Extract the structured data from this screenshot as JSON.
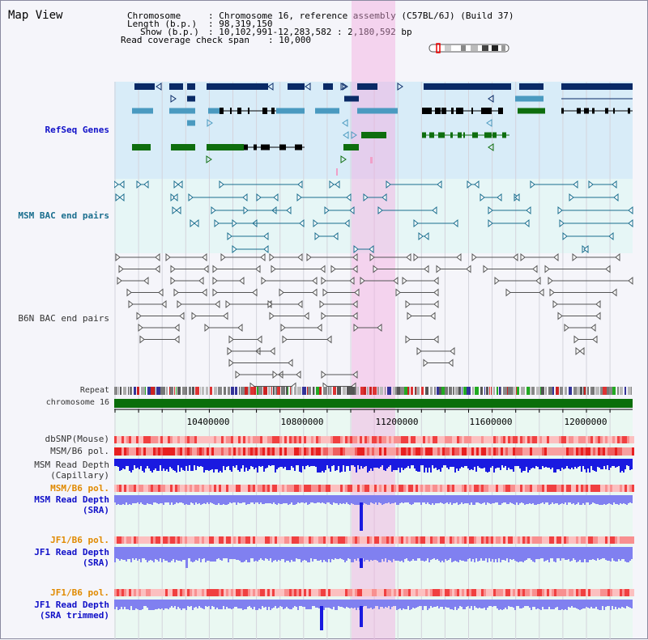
{
  "title": "Map View",
  "header": {
    "chromosome_key": "Chromosome",
    "chromosome_value": ": Chromosome 16, reference assembly (C57BL/6J) (Build 37)",
    "length_key": "Length (b.p.)",
    "length_value": ": 98,319,150",
    "show_key": "Show (b.p.)",
    "show_value": ": 10,102,991-12,283,582 : 2,180,592 bp",
    "coverage_key": "Read coverage check span",
    "coverage_value": ": 10,000"
  },
  "tracks": {
    "refseq": "RefSeq Genes",
    "msm_bac": "MSM BAC end pairs",
    "b6n_bac": "B6N BAC end pairs",
    "repeat": "Repeat",
    "chromosome": "chromosome 16",
    "dbsnp": "dbSNP(Mouse)",
    "msm_b6_pol": "MSM/B6 pol.",
    "msm_read_depth_cap_1": "MSM Read Depth",
    "msm_read_depth_cap_2": "(Capillary)",
    "msm_b6_pol_2": "MSM/B6 pol.",
    "msm_read_depth_sra_1": "MSM Read Depth",
    "msm_read_depth_sra_2": "(SRA)",
    "jf1_b6_pol": "JF1/B6 pol.",
    "jf1_read_depth_1": "JF1 Read Depth",
    "jf1_read_depth_2": "(SRA)",
    "jf1_b6_pol_2": "JF1/B6 pol.",
    "jf1_read_depth_trim_1": "JF1 Read Depth",
    "jf1_read_depth_trim_2": "(SRA trimmed)"
  },
  "axis": {
    "ticks": [
      "10400000",
      "10800000",
      "11200000",
      "11600000",
      "12000000"
    ]
  },
  "colors": {
    "highlight": "#f7d6ef",
    "refseq_bg": "#d8ecf8",
    "bac_bg": "#e6f6f6",
    "gene_dark": "#0a2a66",
    "gene_mid": "#4a9ac0",
    "gene_green": "#0e6e0e",
    "msm_line": "#1a6e8e",
    "b6n_line": "#555555",
    "depth_blue": "#1a1ae0",
    "depth_light": "#8080f0",
    "chrom_green": "#0a6e0a"
  }
}
